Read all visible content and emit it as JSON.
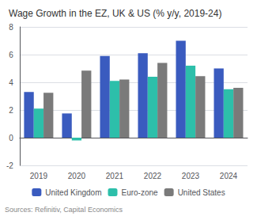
{
  "chart_data": {
    "type": "bar",
    "title": "Wage Growth in the EZ, UK & US (% y/y, 2019-24)",
    "categories": [
      "2019",
      "2020",
      "2021",
      "2022",
      "2023",
      "2024"
    ],
    "series": [
      {
        "name": "United Kingdom",
        "color": "#3a5bbf",
        "values": [
          3.3,
          1.75,
          5.9,
          6.1,
          7.0,
          5.0
        ]
      },
      {
        "name": "Euro-zone",
        "color": "#2dbfaa",
        "values": [
          2.1,
          -0.2,
          4.1,
          4.4,
          5.2,
          3.5
        ]
      },
      {
        "name": "United States",
        "color": "#7a7a7a",
        "values": [
          3.25,
          4.85,
          4.2,
          5.4,
          4.45,
          3.6
        ]
      }
    ],
    "ylim": [
      -2,
      8
    ],
    "yticks": [
      -2,
      0,
      2,
      4,
      6,
      8
    ],
    "grid": true,
    "legend": "bottom",
    "annotation": "Sources: Refinitiv, Capital Economics"
  }
}
